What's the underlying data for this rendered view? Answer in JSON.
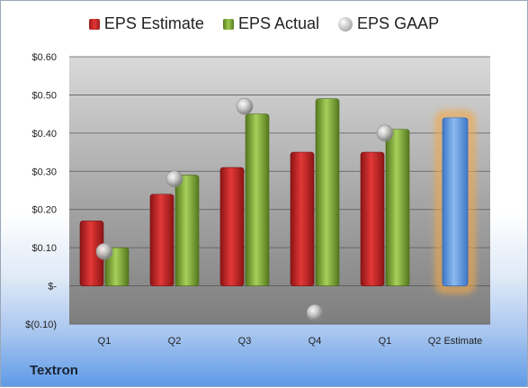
{
  "legend": {
    "estimate": "EPS Estimate",
    "actual": "EPS Actual",
    "gaap": "EPS GAAP"
  },
  "company": "Textron",
  "colors": {
    "estimate": "#d42a2a",
    "actual": "#8fbf45",
    "gaap": "#b8b8b8",
    "forecast_bar": "#6a9ee0",
    "forecast_glow": "#f2a94a"
  },
  "chart_data": {
    "type": "bar",
    "categories": [
      "Q1",
      "Q2",
      "Q3",
      "Q4",
      "Q1",
      "Q2 Estimate"
    ],
    "series": [
      {
        "name": "EPS Estimate",
        "values": [
          0.17,
          0.24,
          0.31,
          0.35,
          0.35,
          null
        ]
      },
      {
        "name": "EPS Actual",
        "values": [
          0.1,
          0.29,
          0.45,
          0.49,
          0.41,
          null
        ]
      },
      {
        "name": "EPS GAAP",
        "values": [
          0.09,
          0.28,
          0.47,
          -0.07,
          0.4,
          null
        ]
      }
    ],
    "forecast": {
      "category": "Q2 Estimate",
      "value": 0.44
    },
    "ylim": [
      -0.1,
      0.6
    ],
    "yticks": [
      -0.1,
      0.0,
      0.1,
      0.2,
      0.3,
      0.4,
      0.5,
      0.6
    ],
    "ytick_labels": [
      "$(0.10)",
      "$-",
      "$0.10",
      "$0.20",
      "$0.30",
      "$0.40",
      "$0.50",
      "$0.60"
    ],
    "grid": true,
    "legend_position": "top"
  }
}
